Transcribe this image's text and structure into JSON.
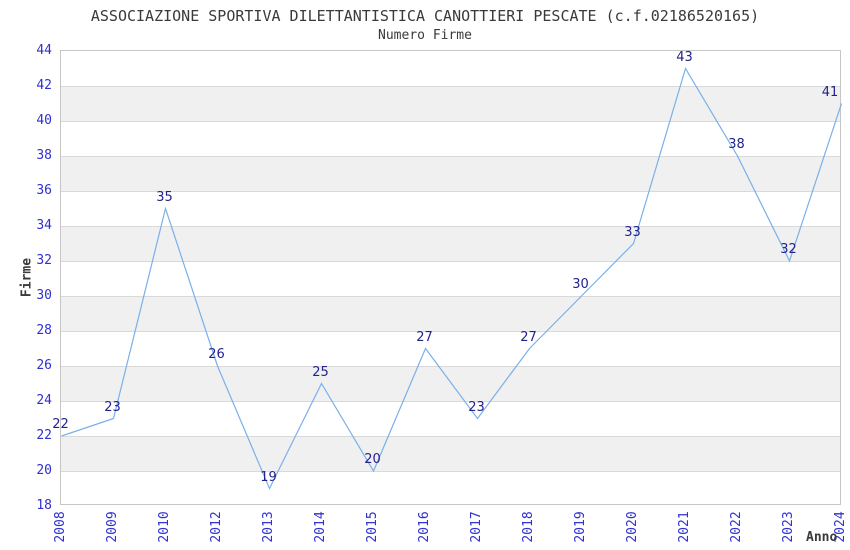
{
  "chart_data": {
    "type": "line",
    "title": "ASSOCIAZIONE SPORTIVA DILETTANTISTICA CANOTTIERI PESCATE (c.f.02186520165)",
    "subtitle": "Numero Firme",
    "xlabel": "Anno",
    "ylabel": "Firme",
    "categories": [
      "2008",
      "2009",
      "2010",
      "2012",
      "2013",
      "2014",
      "2015",
      "2016",
      "2017",
      "2018",
      "2019",
      "2020",
      "2021",
      "2022",
      "2023",
      "2024"
    ],
    "values": [
      22,
      23,
      35,
      26,
      19,
      25,
      20,
      27,
      23,
      27,
      30,
      33,
      43,
      38,
      32,
      41
    ],
    "ylim": [
      18,
      44
    ],
    "ytick_step": 2,
    "grid": "horizontal-bands-alternating",
    "legend": "none",
    "colors": {
      "line": "#7ab0e8",
      "tick_label": "#3030cf",
      "data_label": "#22228c",
      "title": "#3a3a3a",
      "band": "#f0f0f0",
      "gridline": "#d9d9d9",
      "plot_border": "#c6c6c6",
      "background": "#ffffff"
    }
  }
}
